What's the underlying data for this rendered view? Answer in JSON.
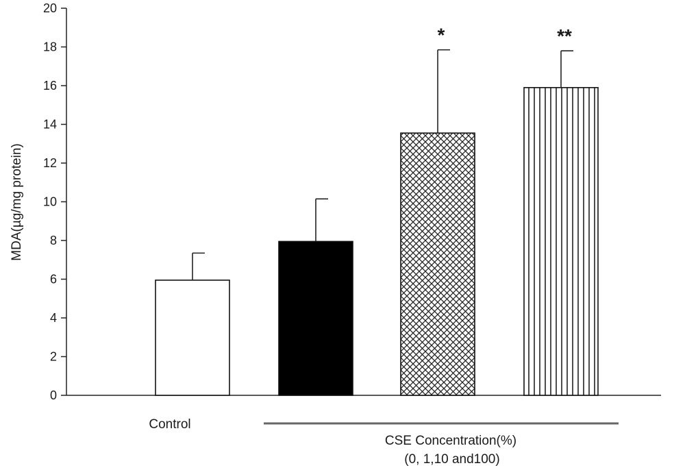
{
  "chart_data": {
    "type": "bar",
    "title": "",
    "ylabel": "MDA(µg/mg protein)",
    "ylim": [
      0,
      20
    ],
    "yticks": [
      0,
      2,
      4,
      6,
      8,
      10,
      12,
      14,
      16,
      18,
      20
    ],
    "grid": false,
    "legend": "none",
    "categories": [
      "0",
      "1",
      "10",
      "100"
    ],
    "values": [
      5.95,
      7.95,
      13.55,
      15.9
    ],
    "errors": [
      1.4,
      2.2,
      4.3,
      1.9
    ],
    "significance": [
      "",
      "",
      "*",
      "**"
    ],
    "fills": [
      "white",
      "black",
      "crosshatch",
      "vertical-lines"
    ],
    "group_labels": {
      "control": "Control",
      "cse_line1": "CSE Concentration(%)",
      "cse_line2": "(0, 1,10 and100)"
    }
  }
}
